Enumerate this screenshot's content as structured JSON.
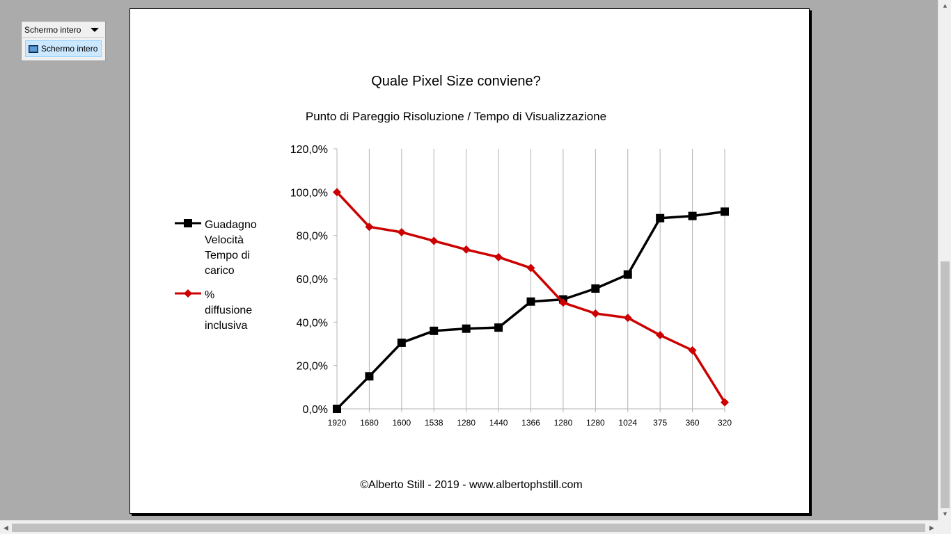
{
  "toolbar": {
    "dropdown_label": "Schermo intero",
    "item_label": "Schermo intero",
    "item_icon": "screen-icon"
  },
  "scrollbars": {
    "up_glyph": "▲",
    "down_glyph": "▼",
    "left_glyph": "◀",
    "right_glyph": "▶"
  },
  "page": {
    "footer": "©Alberto Still - 2019 - www.albertophstill.com"
  },
  "chart_data": {
    "type": "line",
    "title": "Quale Pixel Size conviene?",
    "subtitle": "Punto di Pareggio Risoluzione / Tempo di Visualizzazione",
    "categories": [
      "1920",
      "1680",
      "1600",
      "1538",
      "1280",
      "1440",
      "1366",
      "1280",
      "1280",
      "1024",
      "375",
      "360",
      "320"
    ],
    "ylim": [
      0,
      120
    ],
    "yticks": [
      "0,0%",
      "20,0%",
      "40,0%",
      "60,0%",
      "80,0%",
      "100,0%",
      "120,0%"
    ],
    "grid": "vertical",
    "legend_position": "left",
    "series": [
      {
        "name": "Guadagno Velocità Tempo di carico",
        "legend_lines": [
          "Guadagno",
          "Velocità",
          "Tempo di",
          "carico"
        ],
        "color": "#000000",
        "marker": "square",
        "values": [
          0,
          15,
          30.5,
          36,
          37,
          37.5,
          49.5,
          50.5,
          55.5,
          62,
          88,
          89,
          91
        ]
      },
      {
        "name": " % diffusione inclusiva",
        "legend_lines": [
          " %",
          "diffusione",
          "inclusiva"
        ],
        "color": "#cc0000",
        "marker": "diamond",
        "values": [
          100,
          84,
          81.5,
          77.5,
          73.5,
          70,
          65,
          49,
          44,
          42,
          34,
          27,
          3
        ]
      }
    ]
  }
}
